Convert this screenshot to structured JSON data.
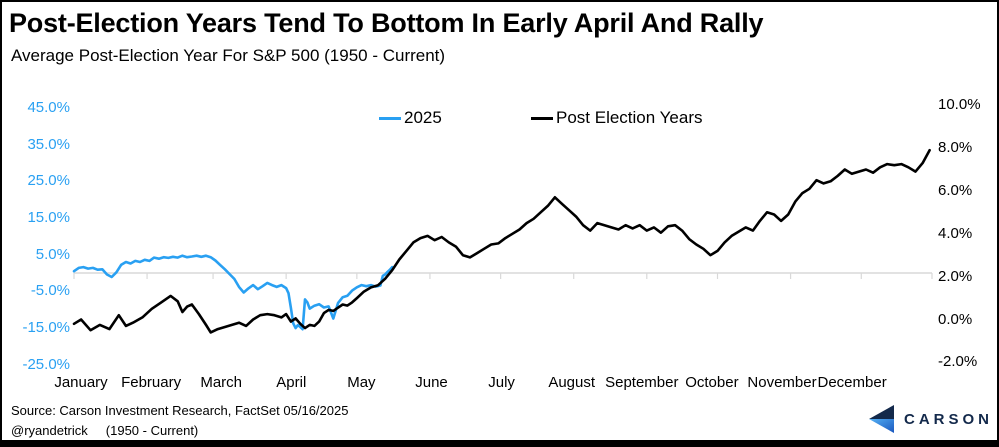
{
  "header": {
    "title": "Post-Election Years Tend To Bottom In Early April And Rally",
    "subtitle": "Average Post-Election Year For S&P 500 (1950 - Current)"
  },
  "footer": {
    "source": "Source: Carson Investment Research, FactSet 05/16/2025",
    "handle": "@ryandetrick",
    "range": "(1950 - Current)",
    "brand": "CARSON"
  },
  "colors": {
    "blue": "#29a0f2",
    "black": "#000000",
    "grid": "#d9d9d9",
    "navy": "#13294b",
    "logo_blue_light": "#54b0f4",
    "logo_blue_dark": "#1a57be"
  },
  "chart_data": {
    "type": "line",
    "title": "Post-Election Years Tend To Bottom In Early April And Rally",
    "subtitle": "Average Post-Election Year For S&P 500 (1950 - Current)",
    "grid": "single horizontal line at left-axis 0%",
    "legend_position": "top-center",
    "x_axis": {
      "unit": "day-of-year",
      "categories": [
        "January",
        "February",
        "March",
        "April",
        "May",
        "June",
        "July",
        "August",
        "September",
        "October",
        "November",
        "December"
      ]
    },
    "left_axis": {
      "applies_to": "2025",
      "color": "#29a0f2",
      "range": [
        -25,
        45
      ],
      "ticks": [
        {
          "label": "45.0%",
          "value": 45
        },
        {
          "label": "35.0%",
          "value": 35
        },
        {
          "label": "25.0%",
          "value": 25
        },
        {
          "label": "15.0%",
          "value": 15
        },
        {
          "label": "5.0%",
          "value": 5
        },
        {
          "label": "-5.0%",
          "value": -5
        },
        {
          "label": "-15.0%",
          "value": -15
        },
        {
          "label": "-25.0%",
          "value": -25
        }
      ]
    },
    "right_axis": {
      "applies_to": "Post Election Years",
      "color": "#000000",
      "range": [
        -2,
        10
      ],
      "ticks": [
        {
          "label": "10.0%",
          "value": 10
        },
        {
          "label": "8.0%",
          "value": 8
        },
        {
          "label": "6.0%",
          "value": 6
        },
        {
          "label": "4.0%",
          "value": 4
        },
        {
          "label": "2.0%",
          "value": 2
        },
        {
          "label": "0.0%",
          "value": 0
        },
        {
          "label": "-2.0%",
          "value": -2
        }
      ]
    },
    "series": [
      {
        "name": "2025",
        "axis": "left",
        "color": "#29a0f2",
        "x": [
          1,
          3,
          5,
          7,
          9,
          11,
          13,
          15,
          17,
          19,
          21,
          23,
          25,
          27,
          29,
          31,
          33,
          35,
          37,
          39,
          41,
          43,
          45,
          47,
          49,
          51,
          53,
          55,
          57,
          59,
          61,
          63,
          65,
          67,
          69,
          71,
          73,
          75,
          77,
          79,
          81,
          83,
          85,
          87,
          89,
          91,
          92,
          93,
          94,
          95,
          96,
          97,
          98,
          99,
          100,
          101,
          103,
          105,
          107,
          109,
          111,
          113,
          115,
          117,
          119,
          121,
          123,
          125,
          127,
          129,
          131,
          132,
          133,
          134,
          135,
          136
        ],
        "y": [
          0.5,
          1.4,
          1.6,
          1.2,
          1.4,
          0.9,
          1.0,
          -0.4,
          -1.1,
          0.2,
          2.2,
          3.0,
          2.6,
          3.3,
          3.0,
          3.6,
          3.3,
          4.2,
          3.9,
          4.3,
          4.1,
          4.4,
          4.2,
          4.7,
          4.3,
          4.5,
          4.7,
          4.4,
          4.7,
          4.3,
          3.4,
          2.2,
          1.0,
          -0.3,
          -1.6,
          -3.8,
          -5.3,
          -4.2,
          -3.3,
          -4.4,
          -3.6,
          -2.7,
          -3.3,
          -3.8,
          -3.3,
          -4.1,
          -5.5,
          -9.5,
          -13.7,
          -15.0,
          -14.2,
          -14.7,
          -15.3,
          -7.2,
          -8.0,
          -9.7,
          -8.9,
          -8.5,
          -9.4,
          -9.1,
          -12.4,
          -8.2,
          -6.6,
          -6.2,
          -4.8,
          -3.9,
          -3.3,
          -3.6,
          -3.3,
          -3.7,
          -3.4,
          -0.8,
          -0.4,
          0.3,
          0.9,
          1.6
        ]
      },
      {
        "name": "Post Election Years",
        "axis": "right",
        "color": "#000000",
        "x": [
          1,
          4,
          8,
          12,
          16,
          20,
          23,
          26,
          30,
          34,
          38,
          42,
          45,
          47,
          49,
          51,
          54,
          57,
          59,
          62,
          65,
          68,
          71,
          74,
          77,
          80,
          83,
          86,
          89,
          91,
          93,
          95,
          97,
          99,
          101,
          103,
          105,
          107,
          109,
          111,
          113,
          115,
          117,
          119,
          121,
          124,
          127,
          130,
          133,
          136,
          139,
          142,
          145,
          148,
          151,
          154,
          157,
          160,
          163,
          166,
          169,
          172,
          175,
          178,
          181,
          184,
          187,
          190,
          193,
          196,
          199,
          202,
          205,
          208,
          211,
          214,
          217,
          220,
          223,
          226,
          229,
          232,
          235,
          238,
          241,
          244,
          247,
          250,
          253,
          256,
          259,
          262,
          265,
          268,
          271,
          274,
          277,
          280,
          283,
          286,
          289,
          292,
          295,
          298,
          301,
          304,
          307,
          310,
          313,
          316,
          319,
          322,
          325,
          328,
          331,
          334,
          337,
          340,
          343,
          346,
          349,
          352,
          355,
          358,
          361,
          364
        ],
        "y": [
          -0.2,
          0.0,
          -0.5,
          -0.25,
          -0.45,
          0.2,
          -0.3,
          -0.15,
          0.1,
          0.5,
          0.8,
          1.1,
          0.85,
          0.35,
          0.6,
          0.7,
          0.25,
          -0.25,
          -0.6,
          -0.45,
          -0.35,
          -0.25,
          -0.15,
          -0.3,
          0.0,
          0.2,
          0.25,
          0.2,
          0.1,
          0.25,
          -0.1,
          0.05,
          -0.2,
          -0.4,
          -0.25,
          -0.3,
          -0.1,
          0.3,
          0.45,
          0.4,
          0.55,
          0.7,
          0.65,
          0.8,
          1.0,
          1.3,
          1.5,
          1.6,
          1.9,
          2.3,
          2.8,
          3.2,
          3.6,
          3.8,
          3.9,
          3.7,
          3.85,
          3.6,
          3.4,
          3.0,
          2.9,
          3.1,
          3.3,
          3.5,
          3.55,
          3.8,
          4.0,
          4.2,
          4.5,
          4.7,
          5.0,
          5.3,
          5.7,
          5.4,
          5.1,
          4.8,
          4.4,
          4.15,
          4.5,
          4.4,
          4.3,
          4.2,
          4.4,
          4.25,
          4.4,
          4.15,
          4.3,
          4.05,
          4.35,
          4.4,
          4.15,
          3.75,
          3.5,
          3.3,
          3.0,
          3.2,
          3.6,
          3.9,
          4.1,
          4.3,
          4.15,
          4.6,
          5.0,
          4.9,
          4.6,
          4.9,
          5.5,
          5.9,
          6.1,
          6.5,
          6.35,
          6.45,
          6.7,
          7.0,
          6.8,
          6.9,
          7.0,
          6.85,
          7.1,
          7.25,
          7.2,
          7.25,
          7.1,
          6.9,
          7.3,
          7.9
        ]
      }
    ]
  }
}
